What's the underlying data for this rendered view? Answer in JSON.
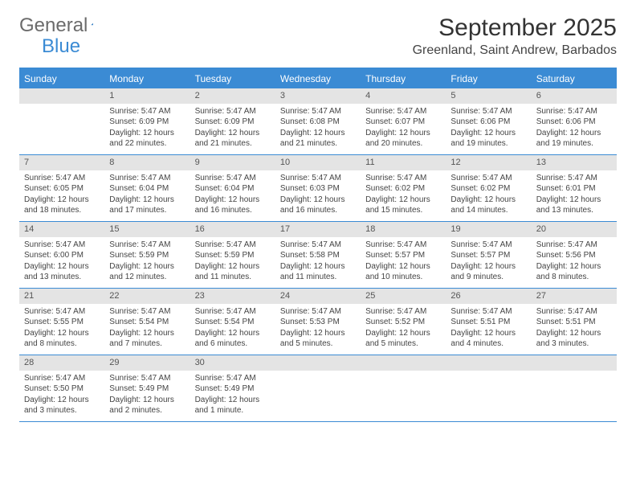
{
  "brand": {
    "part1": "General",
    "part2": "Blue"
  },
  "title": "September 2025",
  "location": "Greenland, Saint Andrew, Barbados",
  "colors": {
    "accent": "#3b8bd4",
    "header_bg": "#3b8bd4",
    "daynum_bg": "#e4e4e4",
    "text": "#444444",
    "bg": "#ffffff"
  },
  "days_of_week": [
    "Sunday",
    "Monday",
    "Tuesday",
    "Wednesday",
    "Thursday",
    "Friday",
    "Saturday"
  ],
  "weeks": [
    [
      {
        "n": "",
        "sr": "",
        "ss": "",
        "dl": ""
      },
      {
        "n": "1",
        "sr": "Sunrise: 5:47 AM",
        "ss": "Sunset: 6:09 PM",
        "dl": "Daylight: 12 hours and 22 minutes."
      },
      {
        "n": "2",
        "sr": "Sunrise: 5:47 AM",
        "ss": "Sunset: 6:09 PM",
        "dl": "Daylight: 12 hours and 21 minutes."
      },
      {
        "n": "3",
        "sr": "Sunrise: 5:47 AM",
        "ss": "Sunset: 6:08 PM",
        "dl": "Daylight: 12 hours and 21 minutes."
      },
      {
        "n": "4",
        "sr": "Sunrise: 5:47 AM",
        "ss": "Sunset: 6:07 PM",
        "dl": "Daylight: 12 hours and 20 minutes."
      },
      {
        "n": "5",
        "sr": "Sunrise: 5:47 AM",
        "ss": "Sunset: 6:06 PM",
        "dl": "Daylight: 12 hours and 19 minutes."
      },
      {
        "n": "6",
        "sr": "Sunrise: 5:47 AM",
        "ss": "Sunset: 6:06 PM",
        "dl": "Daylight: 12 hours and 19 minutes."
      }
    ],
    [
      {
        "n": "7",
        "sr": "Sunrise: 5:47 AM",
        "ss": "Sunset: 6:05 PM",
        "dl": "Daylight: 12 hours and 18 minutes."
      },
      {
        "n": "8",
        "sr": "Sunrise: 5:47 AM",
        "ss": "Sunset: 6:04 PM",
        "dl": "Daylight: 12 hours and 17 minutes."
      },
      {
        "n": "9",
        "sr": "Sunrise: 5:47 AM",
        "ss": "Sunset: 6:04 PM",
        "dl": "Daylight: 12 hours and 16 minutes."
      },
      {
        "n": "10",
        "sr": "Sunrise: 5:47 AM",
        "ss": "Sunset: 6:03 PM",
        "dl": "Daylight: 12 hours and 16 minutes."
      },
      {
        "n": "11",
        "sr": "Sunrise: 5:47 AM",
        "ss": "Sunset: 6:02 PM",
        "dl": "Daylight: 12 hours and 15 minutes."
      },
      {
        "n": "12",
        "sr": "Sunrise: 5:47 AM",
        "ss": "Sunset: 6:02 PM",
        "dl": "Daylight: 12 hours and 14 minutes."
      },
      {
        "n": "13",
        "sr": "Sunrise: 5:47 AM",
        "ss": "Sunset: 6:01 PM",
        "dl": "Daylight: 12 hours and 13 minutes."
      }
    ],
    [
      {
        "n": "14",
        "sr": "Sunrise: 5:47 AM",
        "ss": "Sunset: 6:00 PM",
        "dl": "Daylight: 12 hours and 13 minutes."
      },
      {
        "n": "15",
        "sr": "Sunrise: 5:47 AM",
        "ss": "Sunset: 5:59 PM",
        "dl": "Daylight: 12 hours and 12 minutes."
      },
      {
        "n": "16",
        "sr": "Sunrise: 5:47 AM",
        "ss": "Sunset: 5:59 PM",
        "dl": "Daylight: 12 hours and 11 minutes."
      },
      {
        "n": "17",
        "sr": "Sunrise: 5:47 AM",
        "ss": "Sunset: 5:58 PM",
        "dl": "Daylight: 12 hours and 11 minutes."
      },
      {
        "n": "18",
        "sr": "Sunrise: 5:47 AM",
        "ss": "Sunset: 5:57 PM",
        "dl": "Daylight: 12 hours and 10 minutes."
      },
      {
        "n": "19",
        "sr": "Sunrise: 5:47 AM",
        "ss": "Sunset: 5:57 PM",
        "dl": "Daylight: 12 hours and 9 minutes."
      },
      {
        "n": "20",
        "sr": "Sunrise: 5:47 AM",
        "ss": "Sunset: 5:56 PM",
        "dl": "Daylight: 12 hours and 8 minutes."
      }
    ],
    [
      {
        "n": "21",
        "sr": "Sunrise: 5:47 AM",
        "ss": "Sunset: 5:55 PM",
        "dl": "Daylight: 12 hours and 8 minutes."
      },
      {
        "n": "22",
        "sr": "Sunrise: 5:47 AM",
        "ss": "Sunset: 5:54 PM",
        "dl": "Daylight: 12 hours and 7 minutes."
      },
      {
        "n": "23",
        "sr": "Sunrise: 5:47 AM",
        "ss": "Sunset: 5:54 PM",
        "dl": "Daylight: 12 hours and 6 minutes."
      },
      {
        "n": "24",
        "sr": "Sunrise: 5:47 AM",
        "ss": "Sunset: 5:53 PM",
        "dl": "Daylight: 12 hours and 5 minutes."
      },
      {
        "n": "25",
        "sr": "Sunrise: 5:47 AM",
        "ss": "Sunset: 5:52 PM",
        "dl": "Daylight: 12 hours and 5 minutes."
      },
      {
        "n": "26",
        "sr": "Sunrise: 5:47 AM",
        "ss": "Sunset: 5:51 PM",
        "dl": "Daylight: 12 hours and 4 minutes."
      },
      {
        "n": "27",
        "sr": "Sunrise: 5:47 AM",
        "ss": "Sunset: 5:51 PM",
        "dl": "Daylight: 12 hours and 3 minutes."
      }
    ],
    [
      {
        "n": "28",
        "sr": "Sunrise: 5:47 AM",
        "ss": "Sunset: 5:50 PM",
        "dl": "Daylight: 12 hours and 3 minutes."
      },
      {
        "n": "29",
        "sr": "Sunrise: 5:47 AM",
        "ss": "Sunset: 5:49 PM",
        "dl": "Daylight: 12 hours and 2 minutes."
      },
      {
        "n": "30",
        "sr": "Sunrise: 5:47 AM",
        "ss": "Sunset: 5:49 PM",
        "dl": "Daylight: 12 hours and 1 minute."
      },
      {
        "n": "",
        "sr": "",
        "ss": "",
        "dl": ""
      },
      {
        "n": "",
        "sr": "",
        "ss": "",
        "dl": ""
      },
      {
        "n": "",
        "sr": "",
        "ss": "",
        "dl": ""
      },
      {
        "n": "",
        "sr": "",
        "ss": "",
        "dl": ""
      }
    ]
  ]
}
